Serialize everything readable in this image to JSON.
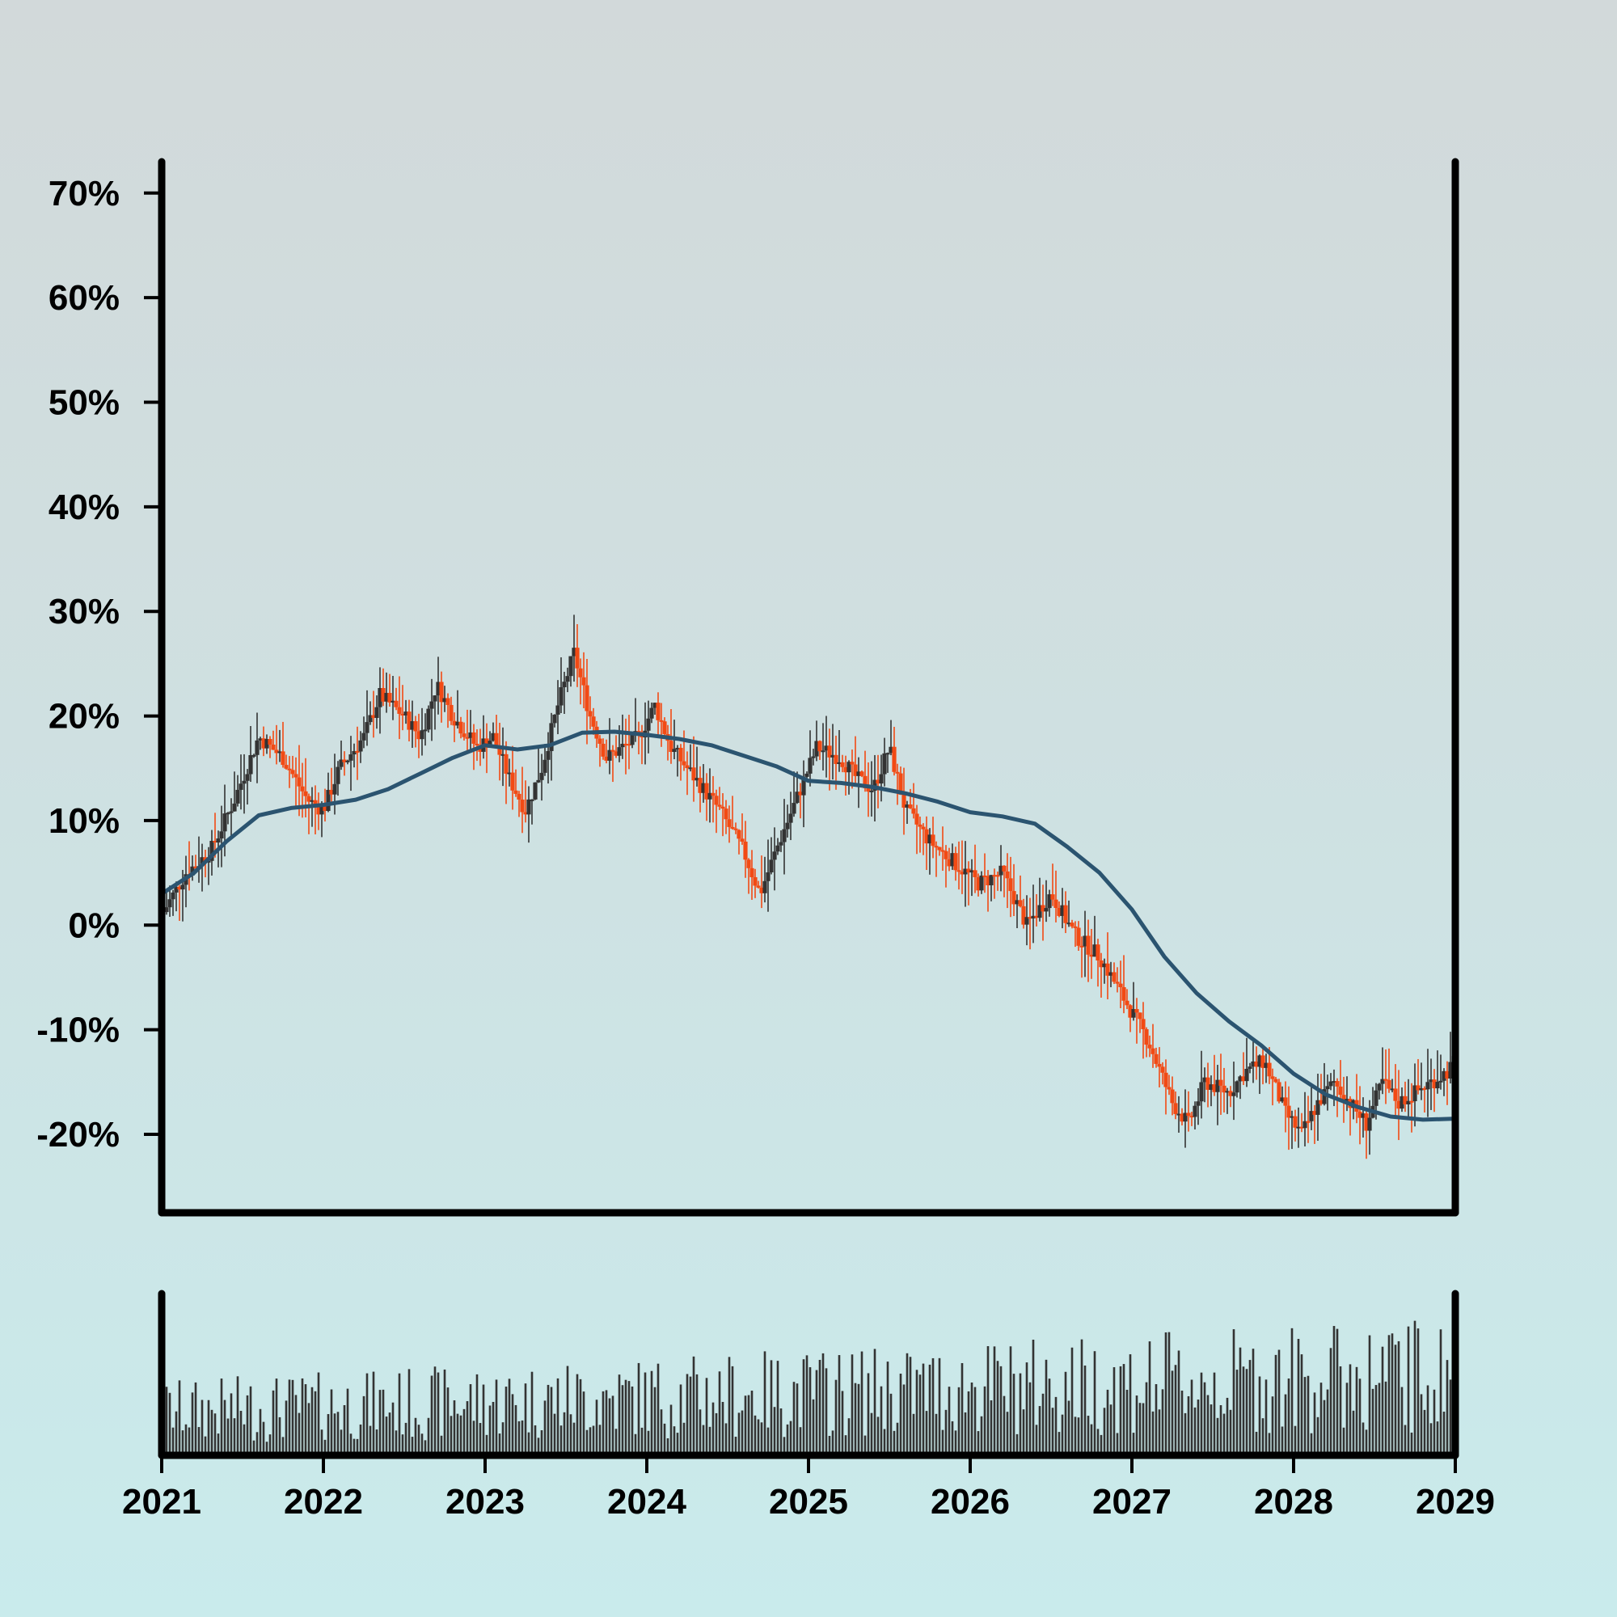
{
  "chart_data": {
    "type": "candlestick",
    "x_unit": "year",
    "y_unit": "%",
    "y_ticks": [
      "70%",
      "60%",
      "50%",
      "40%",
      "30%",
      "20%",
      "10%",
      "0%",
      "-10%",
      "-20%"
    ],
    "x_ticks": [
      "2021",
      "2022",
      "2023",
      "2024",
      "2025",
      "2026",
      "2027",
      "2028",
      "2029"
    ],
    "ylim": [
      -27.5,
      73
    ],
    "xlim": [
      2021,
      2029
    ],
    "grid": false,
    "colors": {
      "up": "#333333",
      "down": "#f24a14",
      "moving_average": "#2b5470",
      "volume": "#333333",
      "axis": "#000000"
    },
    "close_path": [
      [
        2021.0,
        1
      ],
      [
        2021.15,
        5
      ],
      [
        2021.3,
        7
      ],
      [
        2021.45,
        12
      ],
      [
        2021.6,
        18
      ],
      [
        2021.75,
        16
      ],
      [
        2021.9,
        12
      ],
      [
        2022.0,
        11
      ],
      [
        2022.1,
        15
      ],
      [
        2022.25,
        18
      ],
      [
        2022.35,
        22
      ],
      [
        2022.5,
        20
      ],
      [
        2022.6,
        18
      ],
      [
        2022.7,
        23
      ],
      [
        2022.8,
        20
      ],
      [
        2022.95,
        17
      ],
      [
        2023.05,
        18
      ],
      [
        2023.15,
        14
      ],
      [
        2023.25,
        11
      ],
      [
        2023.35,
        15
      ],
      [
        2023.45,
        21
      ],
      [
        2023.55,
        26
      ],
      [
        2023.65,
        20
      ],
      [
        2023.75,
        16
      ],
      [
        2023.85,
        17
      ],
      [
        2023.95,
        18
      ],
      [
        2024.05,
        21
      ],
      [
        2024.15,
        17
      ],
      [
        2024.3,
        14
      ],
      [
        2024.45,
        11
      ],
      [
        2024.6,
        7
      ],
      [
        2024.7,
        3
      ],
      [
        2024.82,
        8
      ],
      [
        2024.95,
        13
      ],
      [
        2025.05,
        17
      ],
      [
        2025.2,
        16
      ],
      [
        2025.3,
        14
      ],
      [
        2025.4,
        13
      ],
      [
        2025.5,
        17
      ],
      [
        2025.6,
        11
      ],
      [
        2025.75,
        8
      ],
      [
        2025.9,
        6
      ],
      [
        2026.05,
        4
      ],
      [
        2026.2,
        5
      ],
      [
        2026.35,
        0
      ],
      [
        2026.5,
        3
      ],
      [
        2026.65,
        -1
      ],
      [
        2026.8,
        -3
      ],
      [
        2026.95,
        -7
      ],
      [
        2027.1,
        -11
      ],
      [
        2027.25,
        -17
      ],
      [
        2027.35,
        -19
      ],
      [
        2027.45,
        -15
      ],
      [
        2027.6,
        -16
      ],
      [
        2027.7,
        -14
      ],
      [
        2027.82,
        -13
      ],
      [
        2027.95,
        -18
      ],
      [
        2028.05,
        -20
      ],
      [
        2028.15,
        -17
      ],
      [
        2028.25,
        -15
      ],
      [
        2028.35,
        -17
      ],
      [
        2028.45,
        -19
      ],
      [
        2028.55,
        -15
      ],
      [
        2028.65,
        -17
      ],
      [
        2028.75,
        -16
      ],
      [
        2028.85,
        -15
      ],
      [
        2028.95,
        -14
      ],
      [
        2029.0,
        -13
      ]
    ],
    "moving_average": [
      [
        2021.0,
        3
      ],
      [
        2021.2,
        5
      ],
      [
        2021.4,
        8
      ],
      [
        2021.6,
        10.5
      ],
      [
        2021.8,
        11.2
      ],
      [
        2022.0,
        11.5
      ],
      [
        2022.2,
        12
      ],
      [
        2022.4,
        13
      ],
      [
        2022.6,
        14.5
      ],
      [
        2022.8,
        16
      ],
      [
        2023.0,
        17.2
      ],
      [
        2023.2,
        16.8
      ],
      [
        2023.4,
        17.2
      ],
      [
        2023.6,
        18.4
      ],
      [
        2023.8,
        18.5
      ],
      [
        2024.0,
        18.2
      ],
      [
        2024.2,
        17.8
      ],
      [
        2024.4,
        17.2
      ],
      [
        2024.6,
        16.2
      ],
      [
        2024.8,
        15.2
      ],
      [
        2025.0,
        13.8
      ],
      [
        2025.2,
        13.6
      ],
      [
        2025.4,
        13.2
      ],
      [
        2025.6,
        12.6
      ],
      [
        2025.8,
        11.8
      ],
      [
        2026.0,
        10.8
      ],
      [
        2026.2,
        10.4
      ],
      [
        2026.4,
        9.7
      ],
      [
        2026.6,
        7.5
      ],
      [
        2026.8,
        5
      ],
      [
        2027.0,
        1.5
      ],
      [
        2027.2,
        -3
      ],
      [
        2027.4,
        -6.5
      ],
      [
        2027.6,
        -9.2
      ],
      [
        2027.8,
        -11.5
      ],
      [
        2028.0,
        -14.2
      ],
      [
        2028.2,
        -16.2
      ],
      [
        2028.4,
        -17.4
      ],
      [
        2028.6,
        -18.3
      ],
      [
        2028.8,
        -18.6
      ],
      [
        2029.0,
        -18.5
      ]
    ]
  }
}
